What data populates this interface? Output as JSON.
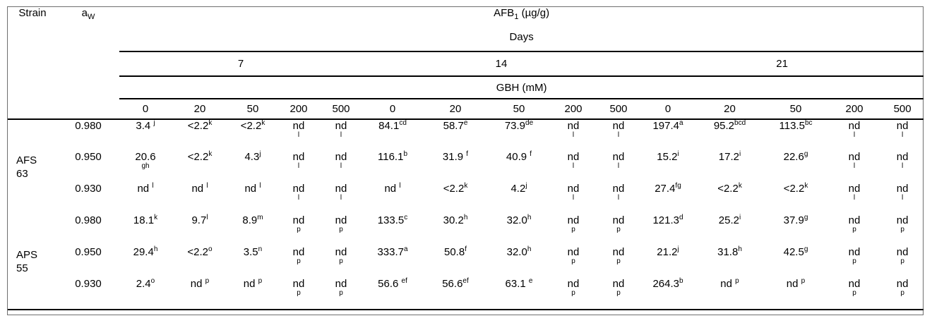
{
  "table": {
    "header": {
      "strain_label": "Strain",
      "aw": {
        "base": "a",
        "sub": "W"
      },
      "afb1": {
        "base": "AFB",
        "sub": "1",
        "unit": " (µg/g)"
      },
      "days_label": "Days",
      "day_values": [
        "7",
        "14",
        "21"
      ],
      "gbh_label": "GBH (mM)",
      "gbh_values": [
        "0",
        "20",
        "50",
        "200",
        "500"
      ]
    },
    "groups": [
      {
        "strain_lines": [
          "AFS",
          "63"
        ],
        "rows": [
          {
            "aw": "0.980",
            "cells": [
              "3.4 ^j",
              "<2.2^k",
              "<2.2^k",
              "nd\n^l",
              "nd\n^l",
              "84.1^cd",
              "58.7^e",
              "73.9^de",
              "nd\n^l",
              "nd\n^l",
              "197.4^a",
              "95.2^bcd",
              "113.5^bc",
              "nd\n^l",
              "nd\n^l"
            ]
          },
          {
            "aw": "0.950",
            "cells": [
              "20.6\n^gh",
              "<2.2^k",
              "4.3^j",
              "nd\n^l",
              "nd\n^l",
              "116.1^b",
              "31.9 ^f",
              "40.9 ^f",
              "nd\n^l",
              "nd\n^l",
              "15.2^i",
              "17.2^i",
              "22.6^g",
              "nd\n^l",
              "nd\n^l"
            ]
          },
          {
            "aw": "0.930",
            "cells": [
              "nd ^l",
              "nd ^l",
              "nd ^l",
              "nd\n^l",
              "nd\n^l",
              "nd ^l",
              "<2.2^k",
              "4.2^j",
              "nd\n^l",
              "nd\n^l",
              "27.4^fg",
              "<2.2^k",
              "<2.2^k",
              "nd\n^l",
              "nd\n^l"
            ]
          }
        ]
      },
      {
        "strain_lines": [
          "APS",
          "55"
        ],
        "rows": [
          {
            "aw": "0.980",
            "cells": [
              "18.1^k",
              "9.7^l",
              "8.9^m",
              "nd\n^p",
              "nd\n^p",
              "133.5^c",
              "30.2^h",
              "32.0^h",
              "nd\n^p",
              "nd\n^p",
              "121.3^d",
              "25.2^i",
              "37.9^g",
              "nd\n^p",
              "nd\n^p"
            ]
          },
          {
            "aw": "0.950",
            "cells": [
              "29.4^h",
              "<2.2^o",
              "3.5^n",
              "nd\n^p",
              "nd\n^p",
              "333.7^a",
              "50.8^f",
              "32.0^h",
              "nd\n^p",
              "nd\n^p",
              "21.2^j",
              "31.8^h",
              "42.5^g",
              "nd\n^p",
              "nd\n^p"
            ]
          },
          {
            "aw": "0.930",
            "cells": [
              "2.4^o",
              "nd ^p",
              "nd ^p",
              "nd\n^p",
              "nd\n^p",
              "56.6 ^ef",
              "56.6^ef",
              "63.1 ^e",
              "nd\n^p",
              "nd\n^p",
              "264.3^b",
              "nd ^p",
              "nd ^p",
              "nd\n^p",
              "nd\n^p"
            ]
          }
        ]
      }
    ]
  }
}
